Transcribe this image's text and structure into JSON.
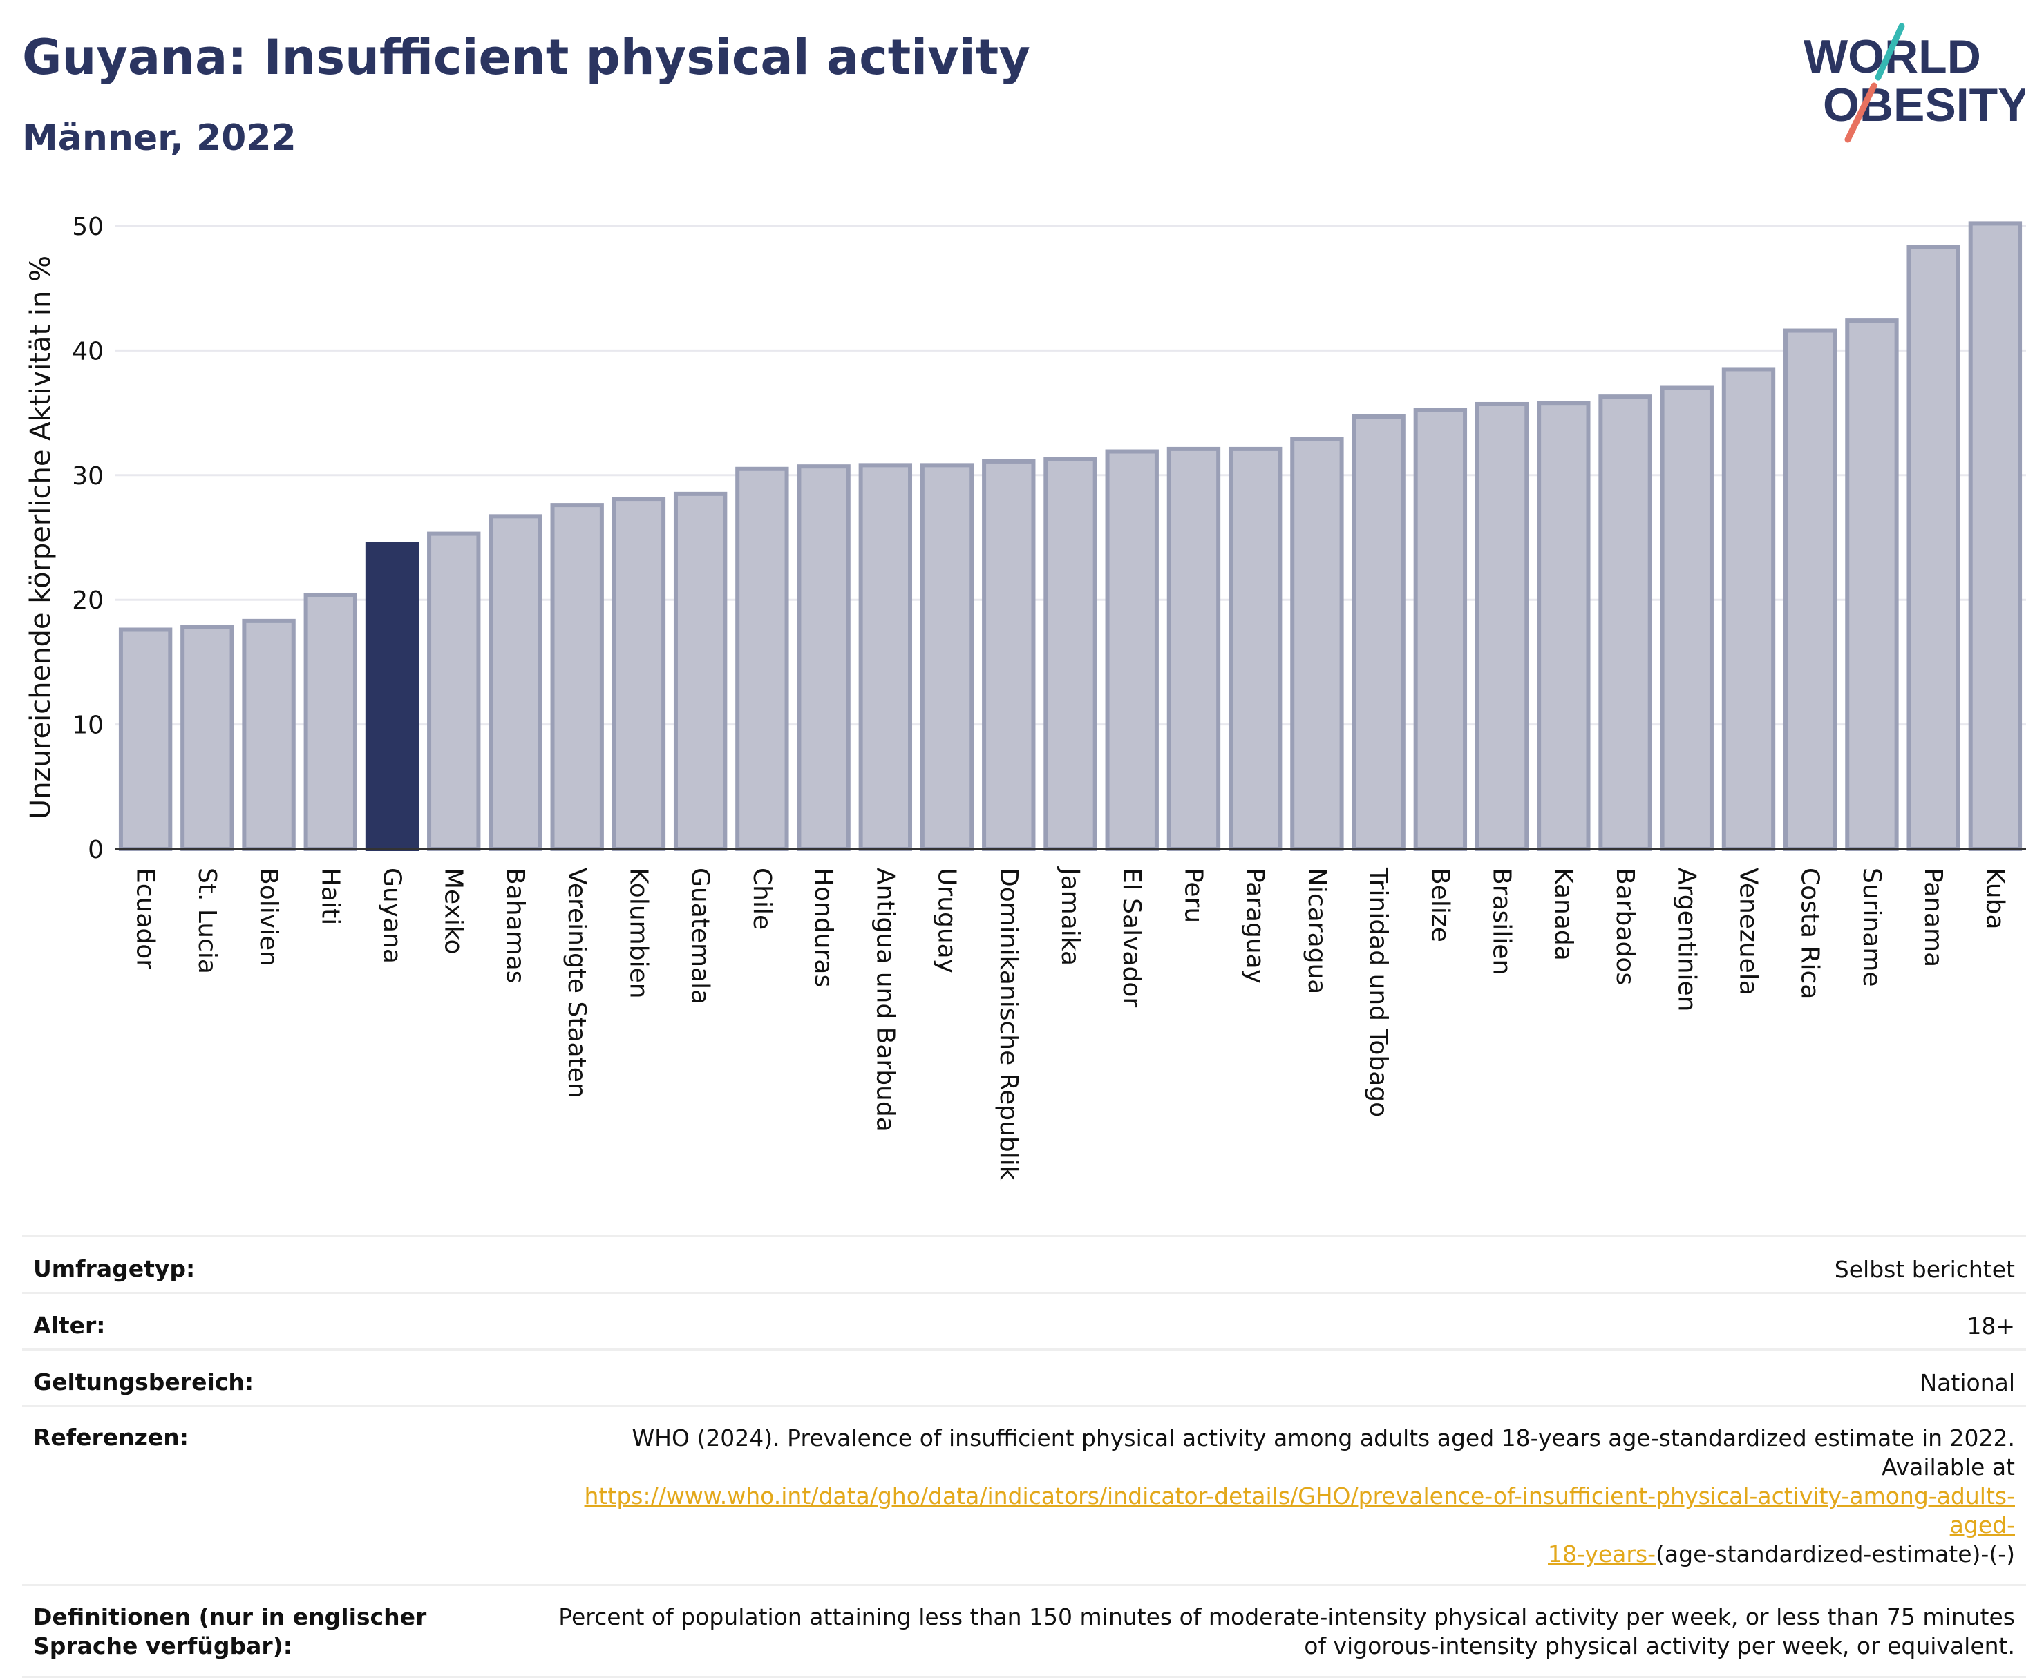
{
  "header": {
    "title": "Guyana: Insufficient physical activity",
    "subtitle": "Männer, 2022",
    "logo_line1": "WORLD",
    "logo_line2": "OBESITY"
  },
  "colors": {
    "bar_default": "#bfc1cf",
    "bar_default_border": "#9a9fb6",
    "bar_highlight": "#2b3561",
    "title": "#2b3561",
    "grid": "#e8e8ee",
    "link": "#e3a81b",
    "logo_teal": "#35b8b3",
    "logo_coral": "#e8715f"
  },
  "chart_data": {
    "type": "bar",
    "title": "Guyana: Insufficient physical activity",
    "subtitle": "Männer, 2022",
    "ylabel": "Unzureichende körperliche Aktivität in %",
    "xlabel": "",
    "ylim": [
      0,
      50
    ],
    "yticks": [
      0,
      10,
      20,
      30,
      40,
      50
    ],
    "grid": true,
    "highlight": "Guyana",
    "categories": [
      "Ecuador",
      "St. Lucia",
      "Bolivien",
      "Haiti",
      "Guyana",
      "Mexiko",
      "Bahamas",
      "Vereinigte Staaten",
      "Kolumbien",
      "Guatemala",
      "Chile",
      "Honduras",
      "Antigua und Barbuda",
      "Uruguay",
      "Dominikanische Republik",
      "Jamaika",
      "El Salvador",
      "Peru",
      "Paraguay",
      "Nicaragua",
      "Trinidad und Tobago",
      "Belize",
      "Brasilien",
      "Kanada",
      "Barbados",
      "Argentinien",
      "Venezuela",
      "Costa Rica",
      "Suriname",
      "Panama",
      "Kuba"
    ],
    "values": [
      17.6,
      17.8,
      18.3,
      20.4,
      24.5,
      25.3,
      26.7,
      27.6,
      28.1,
      28.5,
      30.5,
      30.7,
      30.8,
      30.8,
      31.1,
      31.3,
      31.9,
      32.1,
      32.1,
      32.9,
      34.7,
      35.2,
      35.7,
      35.8,
      36.3,
      37.0,
      38.5,
      41.6,
      42.4,
      48.3,
      50.2
    ]
  },
  "meta": {
    "survey_label": "Umfragetyp:",
    "survey_value": "Selbst berichtet",
    "age_label": "Alter:",
    "age_value": "18+",
    "scope_label": "Geltungsbereich:",
    "scope_value": "National",
    "ref_label": "Referenzen:",
    "ref_text": "WHO (2024). Prevalence of insufficient physical activity among adults aged 18-years age-standardized estimate in 2022. Available at",
    "ref_link_1": "https://www.who.int/data/gho/data/indicators/indicator-details/GHO/prevalence-of-insufficient-physical-activity-among-adults-aged-",
    "ref_link_2": "18-years-",
    "ref_tail": "(age-standardized-estimate)-(-)",
    "def_label": "Definitionen (nur in englischer Sprache verfügbar):",
    "def_text": "Percent of population attaining less than 150 minutes of moderate-intensity physical activity per week, or less than 75 minutes of vigorous-intensity physical activity per week, or equivalent."
  }
}
